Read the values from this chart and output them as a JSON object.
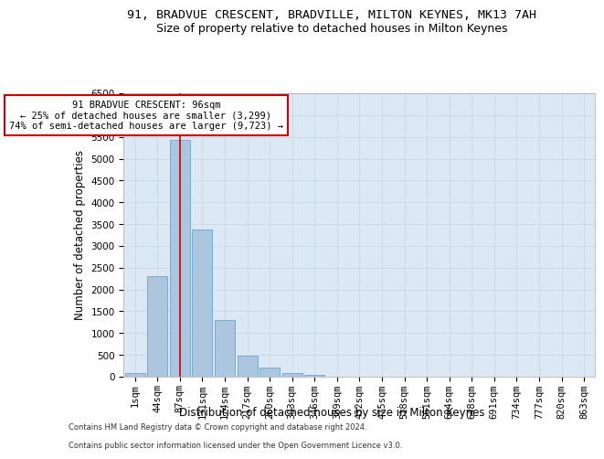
{
  "title_line1": "91, BRADVUE CRESCENT, BRADVILLE, MILTON KEYNES, MK13 7AH",
  "title_line2": "Size of property relative to detached houses in Milton Keynes",
  "xlabel": "Distribution of detached houses by size in Milton Keynes",
  "ylabel": "Number of detached properties",
  "footer_line1": "Contains HM Land Registry data © Crown copyright and database right 2024.",
  "footer_line2": "Contains public sector information licensed under the Open Government Licence v3.0.",
  "bins": [
    "1sqm",
    "44sqm",
    "87sqm",
    "131sqm",
    "174sqm",
    "217sqm",
    "260sqm",
    "303sqm",
    "346sqm",
    "389sqm",
    "432sqm",
    "475sqm",
    "518sqm",
    "561sqm",
    "604sqm",
    "648sqm",
    "691sqm",
    "734sqm",
    "777sqm",
    "820sqm",
    "863sqm"
  ],
  "values": [
    75,
    2300,
    5430,
    3380,
    1310,
    490,
    200,
    85,
    50,
    0,
    0,
    0,
    0,
    0,
    0,
    0,
    0,
    0,
    0,
    0
  ],
  "bar_color": "#adc6e0",
  "bar_edge_color": "#5a9bc8",
  "property_bin_index": 2,
  "vline_color": "#cc0000",
  "annotation_line1": "91 BRADVUE CRESCENT: 96sqm",
  "annotation_line2": "← 25% of detached houses are smaller (3,299)",
  "annotation_line3": "74% of semi-detached houses are larger (9,723) →",
  "annotation_box_color": "#ffffff",
  "annotation_box_edge": "#cc0000",
  "ylim": [
    0,
    6500
  ],
  "yticks": [
    0,
    500,
    1000,
    1500,
    2000,
    2500,
    3000,
    3500,
    4000,
    4500,
    5000,
    5500,
    6000,
    6500
  ],
  "grid_color": "#c8d8e8",
  "background_color": "#dce8f4",
  "title1_fontsize": 9.5,
  "title2_fontsize": 9,
  "axis_label_fontsize": 8.5,
  "tick_fontsize": 7.5,
  "annotation_fontsize": 7.5,
  "footer_fontsize": 6
}
